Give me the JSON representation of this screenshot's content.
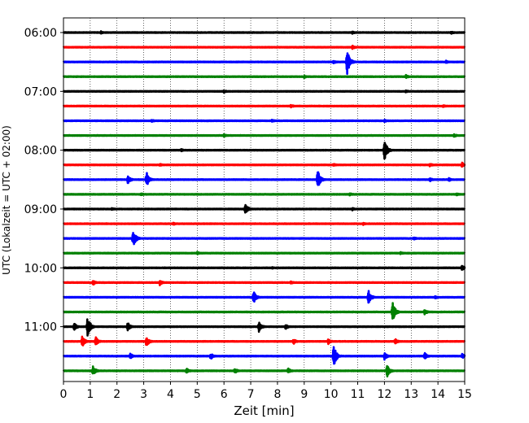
{
  "chart_data": {
    "type": "line",
    "title": "",
    "xlabel": "Zeit  [min]",
    "ylabel": "UTC (Lokalzeit = UTC + 02:00)",
    "xlim": [
      0,
      15
    ],
    "x_ticks": [
      "0",
      "1",
      "2",
      "3",
      "4",
      "5",
      "6",
      "7",
      "8",
      "9",
      "10",
      "11",
      "12",
      "13",
      "14",
      "15"
    ],
    "y_ticks": [
      "06:00",
      "07:00",
      "08:00",
      "09:00",
      "10:00",
      "11:00"
    ],
    "grid": "vertical dotted",
    "colors_cycle": [
      "#000000",
      "#ff0000",
      "#0000ff",
      "#008000"
    ],
    "series": [
      {
        "row": "06:00",
        "color": "#000000",
        "events": [
          {
            "x": 1.4,
            "amp": 0.15
          },
          {
            "x": 10.8,
            "amp": 0.15
          },
          {
            "x": 14.5,
            "amp": 0.15
          }
        ]
      },
      {
        "row": "06:15",
        "color": "#ff0000",
        "events": [
          {
            "x": 10.8,
            "amp": 0.2
          }
        ]
      },
      {
        "row": "06:30",
        "color": "#0000ff",
        "events": [
          {
            "x": 10.6,
            "amp": 1.6
          },
          {
            "x": 10.1,
            "amp": 0.2
          },
          {
            "x": 14.3,
            "amp": 0.15
          }
        ]
      },
      {
        "row": "06:45",
        "color": "#008000",
        "events": [
          {
            "x": 12.8,
            "amp": 0.2
          },
          {
            "x": 9.0,
            "amp": 0.15
          }
        ]
      },
      {
        "row": "07:00",
        "color": "#000000",
        "events": [
          {
            "x": 6.0,
            "amp": 0.15
          },
          {
            "x": 12.8,
            "amp": 0.15
          }
        ]
      },
      {
        "row": "07:15",
        "color": "#ff0000",
        "events": [
          {
            "x": 8.5,
            "amp": 0.2
          },
          {
            "x": 14.2,
            "amp": 0.15
          }
        ]
      },
      {
        "row": "07:30",
        "color": "#0000ff",
        "events": [
          {
            "x": 3.3,
            "amp": 0.15
          },
          {
            "x": 7.8,
            "amp": 0.15
          },
          {
            "x": 12.0,
            "amp": 0.15
          }
        ]
      },
      {
        "row": "07:45",
        "color": "#008000",
        "events": [
          {
            "x": 6.0,
            "amp": 0.15
          },
          {
            "x": 14.6,
            "amp": 0.2
          }
        ]
      },
      {
        "row": "08:00",
        "color": "#000000",
        "events": [
          {
            "x": 12.0,
            "amp": 1.2
          },
          {
            "x": 4.4,
            "amp": 0.15
          }
        ]
      },
      {
        "row": "08:15",
        "color": "#ff0000",
        "events": [
          {
            "x": 3.6,
            "amp": 0.15
          },
          {
            "x": 10.1,
            "amp": 0.15
          },
          {
            "x": 13.7,
            "amp": 0.2
          },
          {
            "x": 14.9,
            "amp": 0.3
          }
        ]
      },
      {
        "row": "08:30",
        "color": "#0000ff",
        "events": [
          {
            "x": 2.4,
            "amp": 0.5
          },
          {
            "x": 3.1,
            "amp": 0.9
          },
          {
            "x": 9.5,
            "amp": 1.1
          },
          {
            "x": 13.7,
            "amp": 0.2
          },
          {
            "x": 14.4,
            "amp": 0.2
          }
        ]
      },
      {
        "row": "08:45",
        "color": "#008000",
        "events": [
          {
            "x": 2.9,
            "amp": 0.15
          },
          {
            "x": 10.7,
            "amp": 0.15
          },
          {
            "x": 14.7,
            "amp": 0.15
          }
        ]
      },
      {
        "row": "09:00",
        "color": "#000000",
        "events": [
          {
            "x": 6.8,
            "amp": 0.7
          },
          {
            "x": 1.8,
            "amp": 0.15
          },
          {
            "x": 10.8,
            "amp": 0.15
          }
        ]
      },
      {
        "row": "09:15",
        "color": "#ff0000",
        "events": [
          {
            "x": 4.1,
            "amp": 0.15
          },
          {
            "x": 11.2,
            "amp": 0.15
          }
        ]
      },
      {
        "row": "09:30",
        "color": "#0000ff",
        "events": [
          {
            "x": 2.6,
            "amp": 1.0
          },
          {
            "x": 13.1,
            "amp": 0.15
          }
        ]
      },
      {
        "row": "09:45",
        "color": "#008000",
        "events": [
          {
            "x": 5.0,
            "amp": 0.15
          },
          {
            "x": 12.6,
            "amp": 0.15
          }
        ]
      },
      {
        "row": "10:00",
        "color": "#000000",
        "events": [
          {
            "x": 14.9,
            "amp": 0.3
          },
          {
            "x": 7.8,
            "amp": 0.1
          }
        ]
      },
      {
        "row": "10:15",
        "color": "#ff0000",
        "events": [
          {
            "x": 1.1,
            "amp": 0.3
          },
          {
            "x": 3.6,
            "amp": 0.3
          },
          {
            "x": 8.5,
            "amp": 0.15
          }
        ]
      },
      {
        "row": "10:30",
        "color": "#0000ff",
        "events": [
          {
            "x": 7.1,
            "amp": 0.7
          },
          {
            "x": 11.4,
            "amp": 0.8
          },
          {
            "x": 13.9,
            "amp": 0.15
          }
        ]
      },
      {
        "row": "10:45",
        "color": "#008000",
        "events": [
          {
            "x": 12.3,
            "amp": 1.2
          },
          {
            "x": 13.5,
            "amp": 0.3
          }
        ]
      },
      {
        "row": "11:00",
        "color": "#000000",
        "events": [
          {
            "x": 0.9,
            "amp": 1.3
          },
          {
            "x": 0.4,
            "amp": 0.5
          },
          {
            "x": 2.4,
            "amp": 0.5
          },
          {
            "x": 7.3,
            "amp": 0.6
          },
          {
            "x": 8.3,
            "amp": 0.3
          }
        ]
      },
      {
        "row": "11:15",
        "color": "#ff0000",
        "events": [
          {
            "x": 0.7,
            "amp": 0.6
          },
          {
            "x": 1.2,
            "amp": 0.5
          },
          {
            "x": 3.1,
            "amp": 0.6
          },
          {
            "x": 8.6,
            "amp": 0.3
          },
          {
            "x": 9.9,
            "amp": 0.3
          },
          {
            "x": 12.4,
            "amp": 0.3
          }
        ]
      },
      {
        "row": "11:30",
        "color": "#0000ff",
        "events": [
          {
            "x": 10.1,
            "amp": 1.3
          },
          {
            "x": 5.5,
            "amp": 0.4
          },
          {
            "x": 12.0,
            "amp": 0.4
          },
          {
            "x": 13.5,
            "amp": 0.4
          },
          {
            "x": 14.9,
            "amp": 0.3
          },
          {
            "x": 2.5,
            "amp": 0.3
          }
        ]
      },
      {
        "row": "11:45",
        "color": "#008000",
        "events": [
          {
            "x": 1.1,
            "amp": 0.6
          },
          {
            "x": 12.1,
            "amp": 0.7
          },
          {
            "x": 4.6,
            "amp": 0.3
          },
          {
            "x": 6.4,
            "amp": 0.3
          },
          {
            "x": 8.4,
            "amp": 0.3
          }
        ]
      }
    ]
  }
}
